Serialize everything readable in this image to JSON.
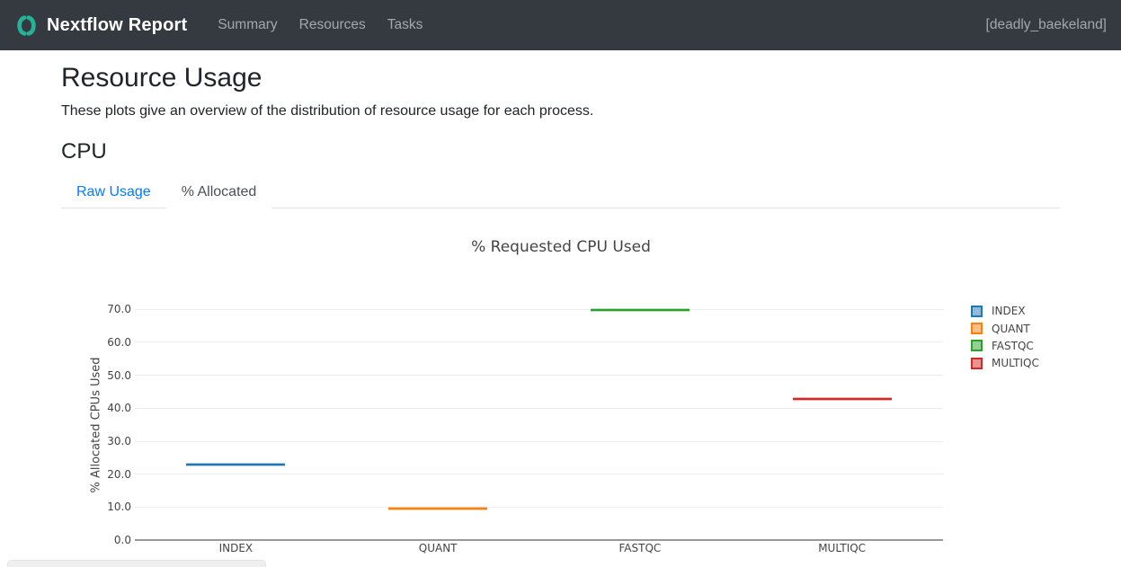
{
  "navbar": {
    "brand": "Nextflow Report",
    "logo_icon": "nextflow-double-bracket",
    "logo_color": "#26b298",
    "bg_color": "#343a40",
    "links": [
      {
        "label": "Summary"
      },
      {
        "label": "Resources"
      },
      {
        "label": "Tasks"
      }
    ],
    "run_name": "[deadly_baekeland]"
  },
  "page": {
    "title": "Resource Usage",
    "subtitle": "These plots give an overview of the distribution of resource usage for each process.",
    "section_heading": "CPU",
    "accent_color": "#007bff"
  },
  "tabs": [
    {
      "label": "Raw Usage",
      "active": false
    },
    {
      "label": "% Allocated",
      "active": true
    }
  ],
  "chart_data": {
    "type": "box",
    "title": "% Requested CPU Used",
    "xlabel": "",
    "ylabel": "% Allocated CPUs Used",
    "categories": [
      "INDEX",
      "QUANT",
      "FASTQC",
      "MULTIQC"
    ],
    "series": [
      {
        "name": "INDEX",
        "median": 22.9,
        "color": "#1f77b4"
      },
      {
        "name": "QUANT",
        "median": 9.7,
        "color": "#ff7f0e"
      },
      {
        "name": "FASTQC",
        "median": 69.8,
        "color": "#2ca02c"
      },
      {
        "name": "MULTIQC",
        "median": 42.9,
        "color": "#d62728"
      }
    ],
    "ylim": [
      0,
      70
    ],
    "y_ticks": [
      0,
      10,
      20,
      30,
      40,
      50,
      60,
      70
    ],
    "y_tick_labels": [
      "0.0",
      "10.0",
      "20.0",
      "30.0",
      "40.0",
      "50.0",
      "60.0",
      "70.0"
    ],
    "grid": true,
    "legend_position": "right",
    "legend": [
      "INDEX",
      "QUANT",
      "FASTQC",
      "MULTIQC"
    ]
  }
}
